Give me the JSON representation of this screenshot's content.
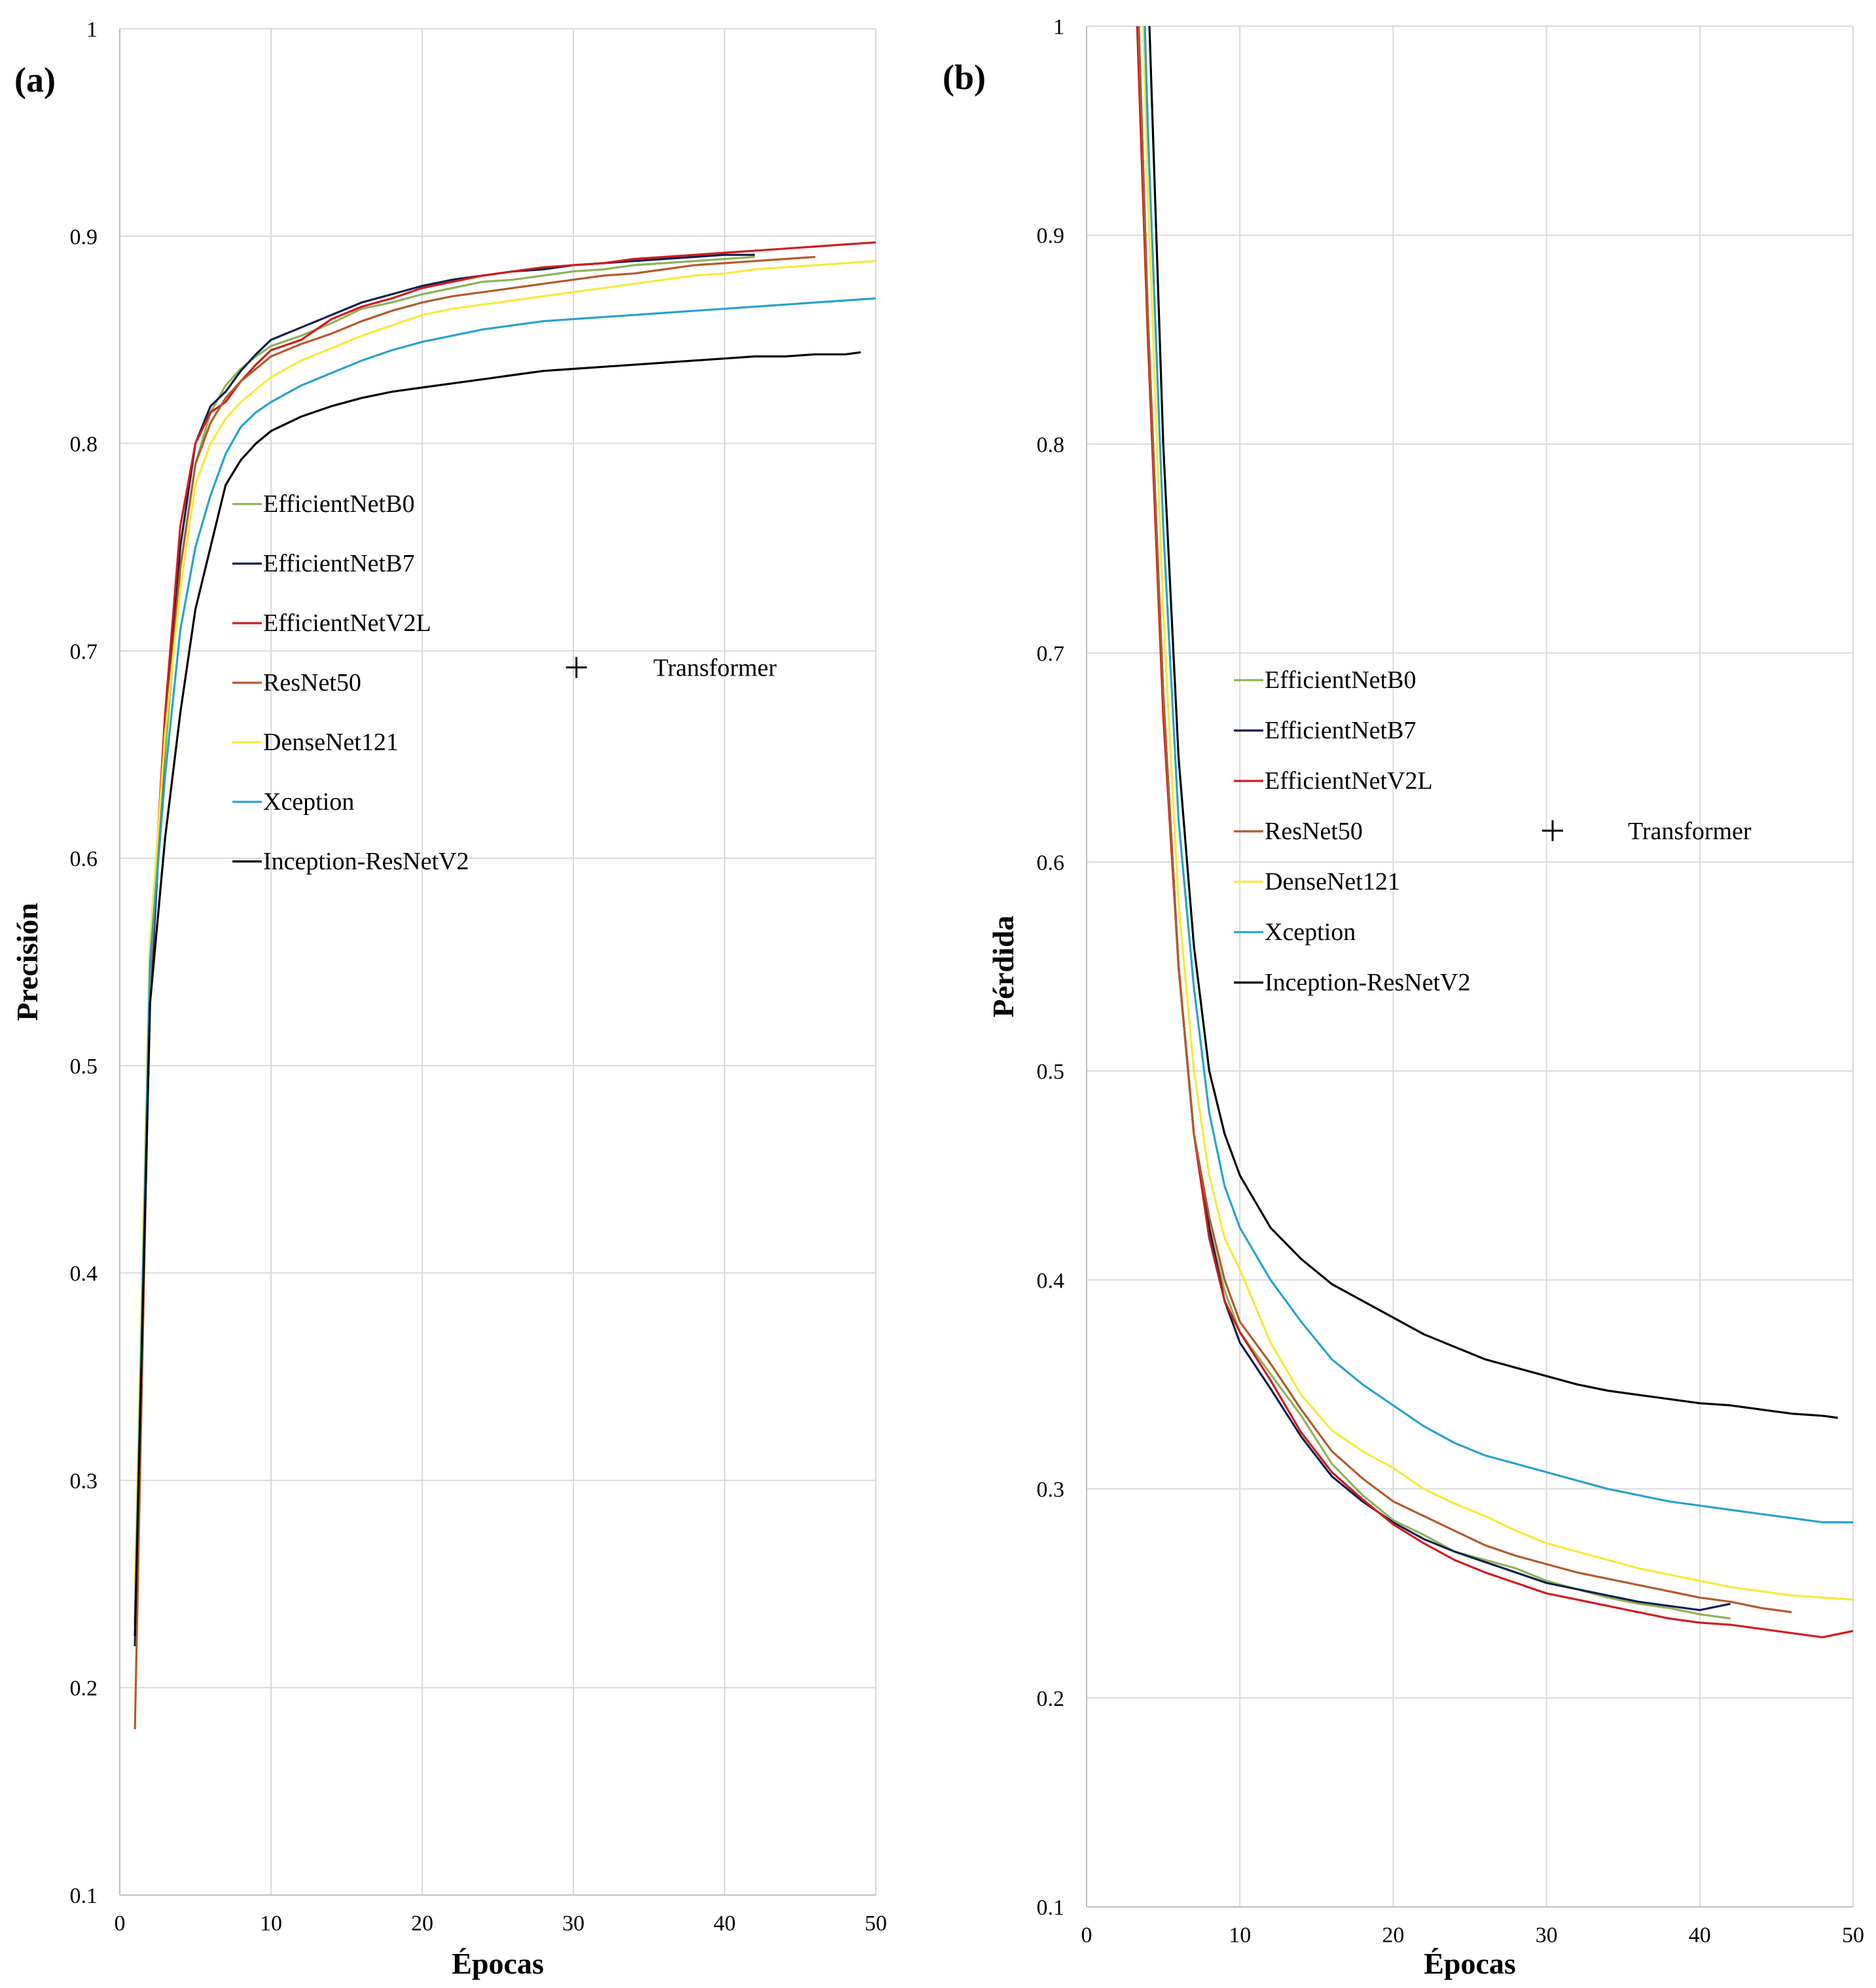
{
  "chart_data": [
    {
      "type": "line",
      "panel_label": "(a)",
      "xlabel": "Épocas",
      "ylabel": "Precisión",
      "xlim": [
        0,
        50
      ],
      "ylim": [
        0.1,
        1
      ],
      "xticks": [
        0,
        10,
        20,
        30,
        40,
        50
      ],
      "xtick_labels": [
        "0",
        "10",
        "20",
        "30",
        "40",
        "50"
      ],
      "yticks": [
        0.1,
        0.2,
        0.3,
        0.4,
        0.5,
        0.6,
        0.7,
        0.8,
        0.9,
        1
      ],
      "ytick_labels": [
        "0.1",
        "0.2",
        "0.3",
        "0.4",
        "0.5",
        "0.6",
        "0.7",
        "0.8",
        "0.9",
        "1"
      ],
      "grid": true,
      "legend_position": "center-left",
      "series": [
        {
          "name": "EfficientNetB0",
          "color": "#8db356",
          "x": [
            1,
            2,
            3,
            4,
            5,
            6,
            7,
            8,
            9,
            10,
            12,
            14,
            16,
            18,
            20,
            22,
            24,
            26,
            28,
            30,
            32,
            34,
            36,
            38,
            40,
            42
          ],
          "values": [
            0.23,
            0.54,
            0.65,
            0.74,
            0.79,
            0.815,
            0.828,
            0.836,
            0.842,
            0.847,
            0.852,
            0.858,
            0.865,
            0.868,
            0.872,
            0.875,
            0.878,
            0.879,
            0.881,
            0.883,
            0.884,
            0.886,
            0.887,
            0.888,
            0.889,
            0.89
          ]
        },
        {
          "name": "EfficientNetB7",
          "color": "#0e1f4d",
          "x": [
            1,
            2,
            3,
            4,
            5,
            6,
            7,
            8,
            9,
            10,
            12,
            14,
            16,
            18,
            20,
            22,
            24,
            26,
            28,
            30,
            32,
            34,
            36,
            38,
            40,
            42
          ],
          "values": [
            0.22,
            0.53,
            0.66,
            0.75,
            0.8,
            0.818,
            0.825,
            0.835,
            0.843,
            0.85,
            0.856,
            0.862,
            0.868,
            0.872,
            0.876,
            0.879,
            0.881,
            0.883,
            0.884,
            0.886,
            0.887,
            0.888,
            0.889,
            0.89,
            0.891,
            0.891
          ]
        },
        {
          "name": "EfficientNetV2L",
          "color": "#d01c1f",
          "x": [
            1,
            2,
            3,
            4,
            5,
            6,
            7,
            8,
            9,
            10,
            12,
            14,
            16,
            18,
            20,
            22,
            24,
            26,
            28,
            30,
            32,
            34,
            36,
            38,
            40,
            42,
            44,
            46,
            48,
            50
          ],
          "values": [
            0.23,
            0.55,
            0.67,
            0.76,
            0.8,
            0.815,
            0.82,
            0.83,
            0.838,
            0.845,
            0.85,
            0.86,
            0.866,
            0.87,
            0.875,
            0.878,
            0.881,
            0.883,
            0.885,
            0.886,
            0.887,
            0.889,
            0.89,
            0.891,
            0.892,
            0.893,
            0.894,
            0.895,
            0.896,
            0.897
          ]
        },
        {
          "name": "ResNet50",
          "color": "#b35a2a",
          "x": [
            1,
            2,
            3,
            4,
            5,
            6,
            7,
            8,
            9,
            10,
            12,
            14,
            16,
            18,
            20,
            22,
            24,
            26,
            28,
            30,
            32,
            34,
            36,
            38,
            40,
            42,
            44,
            46
          ],
          "values": [
            0.18,
            0.54,
            0.66,
            0.74,
            0.79,
            0.81,
            0.822,
            0.83,
            0.836,
            0.842,
            0.848,
            0.853,
            0.859,
            0.864,
            0.868,
            0.871,
            0.873,
            0.875,
            0.877,
            0.879,
            0.881,
            0.882,
            0.884,
            0.886,
            0.887,
            0.888,
            0.889,
            0.89
          ]
        },
        {
          "name": "DenseNet121",
          "color": "#f7e93a",
          "x": [
            1,
            2,
            3,
            4,
            5,
            6,
            7,
            8,
            9,
            10,
            12,
            14,
            16,
            18,
            20,
            22,
            24,
            26,
            28,
            30,
            32,
            34,
            36,
            38,
            40,
            42,
            44,
            46,
            48,
            50
          ],
          "values": [
            0.25,
            0.56,
            0.66,
            0.73,
            0.78,
            0.8,
            0.812,
            0.82,
            0.826,
            0.832,
            0.84,
            0.846,
            0.852,
            0.857,
            0.862,
            0.865,
            0.867,
            0.869,
            0.871,
            0.873,
            0.875,
            0.877,
            0.879,
            0.881,
            0.882,
            0.884,
            0.885,
            0.886,
            0.887,
            0.888
          ]
        },
        {
          "name": "Xception",
          "color": "#27a2cf",
          "x": [
            1,
            2,
            3,
            4,
            5,
            6,
            7,
            8,
            9,
            10,
            12,
            14,
            16,
            18,
            20,
            22,
            24,
            26,
            28,
            30,
            32,
            34,
            36,
            38,
            40,
            42,
            44,
            46,
            48,
            50
          ],
          "values": [
            0.23,
            0.55,
            0.64,
            0.71,
            0.75,
            0.775,
            0.795,
            0.808,
            0.815,
            0.82,
            0.828,
            0.834,
            0.84,
            0.845,
            0.849,
            0.852,
            0.855,
            0.857,
            0.859,
            0.86,
            0.861,
            0.862,
            0.863,
            0.864,
            0.865,
            0.866,
            0.867,
            0.868,
            0.869,
            0.87
          ]
        },
        {
          "name": "Inception-ResNetV2",
          "color": "#000000",
          "x": [
            1,
            2,
            3,
            4,
            5,
            6,
            7,
            8,
            9,
            10,
            12,
            14,
            16,
            18,
            20,
            22,
            24,
            26,
            28,
            30,
            32,
            34,
            36,
            38,
            40,
            42,
            44,
            46,
            48,
            49
          ],
          "values": [
            0.225,
            0.53,
            0.61,
            0.67,
            0.72,
            0.75,
            0.78,
            0.792,
            0.8,
            0.806,
            0.813,
            0.818,
            0.822,
            0.825,
            0.827,
            0.829,
            0.831,
            0.833,
            0.835,
            0.836,
            0.837,
            0.838,
            0.839,
            0.84,
            0.841,
            0.842,
            0.842,
            0.843,
            0.843,
            0.844
          ]
        }
      ],
      "annotations": [
        {
          "text": "Transformer",
          "marker": "+",
          "x": 30.2,
          "y": 0.692
        }
      ]
    },
    {
      "type": "line",
      "panel_label": "(b)",
      "xlabel": "Épocas",
      "ylabel": "Pérdida",
      "xlim": [
        0,
        50
      ],
      "ylim": [
        0.1,
        1
      ],
      "xticks": [
        0,
        10,
        20,
        30,
        40,
        50
      ],
      "xtick_labels": [
        "0",
        "10",
        "20",
        "30",
        "40",
        "50"
      ],
      "yticks": [
        0.1,
        0.2,
        0.3,
        0.4,
        0.5,
        0.6,
        0.7,
        0.8,
        0.9,
        1
      ],
      "ytick_labels": [
        "0.1",
        "0.2",
        "0.3",
        "0.4",
        "0.5",
        "0.6",
        "0.7",
        "0.8",
        "0.9",
        "1"
      ],
      "grid": true,
      "legend_position": "center-left",
      "series": [
        {
          "name": "EfficientNetB0",
          "color": "#8db356",
          "x": [
            3.3,
            4,
            5,
            6,
            7,
            8,
            9,
            10,
            12,
            14,
            16,
            18,
            20,
            22,
            24,
            26,
            28,
            30,
            32,
            34,
            36,
            38,
            40,
            42
          ],
          "values": [
            1.0,
            0.85,
            0.68,
            0.55,
            0.47,
            0.425,
            0.395,
            0.375,
            0.355,
            0.335,
            0.312,
            0.297,
            0.285,
            0.278,
            0.27,
            0.266,
            0.262,
            0.256,
            0.252,
            0.248,
            0.245,
            0.243,
            0.24,
            0.238
          ]
        },
        {
          "name": "EfficientNetB7",
          "color": "#0e1f4d",
          "x": [
            3.4,
            4,
            5,
            6,
            7,
            8,
            9,
            10,
            12,
            14,
            16,
            18,
            20,
            22,
            24,
            26,
            28,
            30,
            32,
            34,
            36,
            38,
            40,
            42
          ],
          "values": [
            1.0,
            0.86,
            0.68,
            0.55,
            0.47,
            0.425,
            0.39,
            0.37,
            0.348,
            0.325,
            0.306,
            0.294,
            0.284,
            0.276,
            0.27,
            0.265,
            0.26,
            0.255,
            0.252,
            0.249,
            0.246,
            0.244,
            0.242,
            0.245
          ]
        },
        {
          "name": "EfficientNetV2L",
          "color": "#d01c1f",
          "x": [
            3.3,
            4,
            5,
            6,
            7,
            8,
            9,
            10,
            12,
            14,
            16,
            18,
            20,
            22,
            24,
            26,
            28,
            30,
            32,
            34,
            36,
            38,
            40,
            42,
            44,
            46,
            48,
            50
          ],
          "values": [
            1.0,
            0.85,
            0.67,
            0.55,
            0.47,
            0.42,
            0.39,
            0.375,
            0.352,
            0.327,
            0.308,
            0.295,
            0.283,
            0.274,
            0.266,
            0.26,
            0.255,
            0.25,
            0.247,
            0.244,
            0.241,
            0.238,
            0.236,
            0.235,
            0.233,
            0.231,
            0.229,
            0.232
          ]
        },
        {
          "name": "ResNet50",
          "color": "#b35a2a",
          "x": [
            3.4,
            4,
            5,
            6,
            7,
            8,
            9,
            10,
            12,
            14,
            16,
            18,
            20,
            22,
            24,
            26,
            28,
            30,
            32,
            34,
            36,
            38,
            40,
            42,
            44,
            46
          ],
          "values": [
            1.0,
            0.86,
            0.68,
            0.55,
            0.47,
            0.43,
            0.4,
            0.38,
            0.36,
            0.338,
            0.318,
            0.305,
            0.294,
            0.287,
            0.28,
            0.273,
            0.268,
            0.264,
            0.26,
            0.257,
            0.254,
            0.251,
            0.248,
            0.246,
            0.243,
            0.241
          ]
        },
        {
          "name": "DenseNet121",
          "color": "#f7e93a",
          "x": [
            3.7,
            4,
            5,
            6,
            7,
            8,
            9,
            10,
            12,
            14,
            16,
            18,
            20,
            22,
            24,
            26,
            28,
            30,
            32,
            34,
            36,
            38,
            40,
            42,
            44,
            46,
            48,
            50
          ],
          "values": [
            1.0,
            0.92,
            0.72,
            0.58,
            0.5,
            0.45,
            0.42,
            0.405,
            0.37,
            0.345,
            0.328,
            0.318,
            0.31,
            0.3,
            0.293,
            0.287,
            0.28,
            0.274,
            0.27,
            0.266,
            0.262,
            0.259,
            0.256,
            0.253,
            0.251,
            0.249,
            0.248,
            0.247
          ]
        },
        {
          "name": "Xception",
          "color": "#27a2cf",
          "x": [
            3.8,
            4,
            5,
            6,
            7,
            8,
            9,
            10,
            12,
            14,
            16,
            18,
            20,
            22,
            24,
            26,
            28,
            30,
            32,
            34,
            36,
            38,
            40,
            42,
            44,
            46,
            48,
            50
          ],
          "values": [
            1.0,
            0.95,
            0.76,
            0.62,
            0.54,
            0.48,
            0.445,
            0.425,
            0.4,
            0.38,
            0.362,
            0.35,
            0.34,
            0.33,
            0.322,
            0.316,
            0.312,
            0.308,
            0.304,
            0.3,
            0.297,
            0.294,
            0.292,
            0.29,
            0.288,
            0.286,
            0.284,
            0.284
          ]
        },
        {
          "name": "Inception-ResNetV2",
          "color": "#000000",
          "x": [
            4.1,
            5,
            6,
            7,
            8,
            9,
            10,
            12,
            14,
            16,
            18,
            20,
            22,
            24,
            26,
            28,
            30,
            32,
            34,
            36,
            38,
            40,
            42,
            44,
            46,
            48,
            49
          ],
          "values": [
            1.0,
            0.8,
            0.65,
            0.56,
            0.5,
            0.47,
            0.45,
            0.425,
            0.41,
            0.398,
            0.39,
            0.382,
            0.374,
            0.368,
            0.362,
            0.358,
            0.354,
            0.35,
            0.347,
            0.345,
            0.343,
            0.341,
            0.34,
            0.338,
            0.336,
            0.335,
            0.334
          ]
        }
      ],
      "annotations": [
        {
          "text": "Transformer",
          "marker": "+",
          "x": 30.4,
          "y": 0.615
        }
      ]
    }
  ]
}
